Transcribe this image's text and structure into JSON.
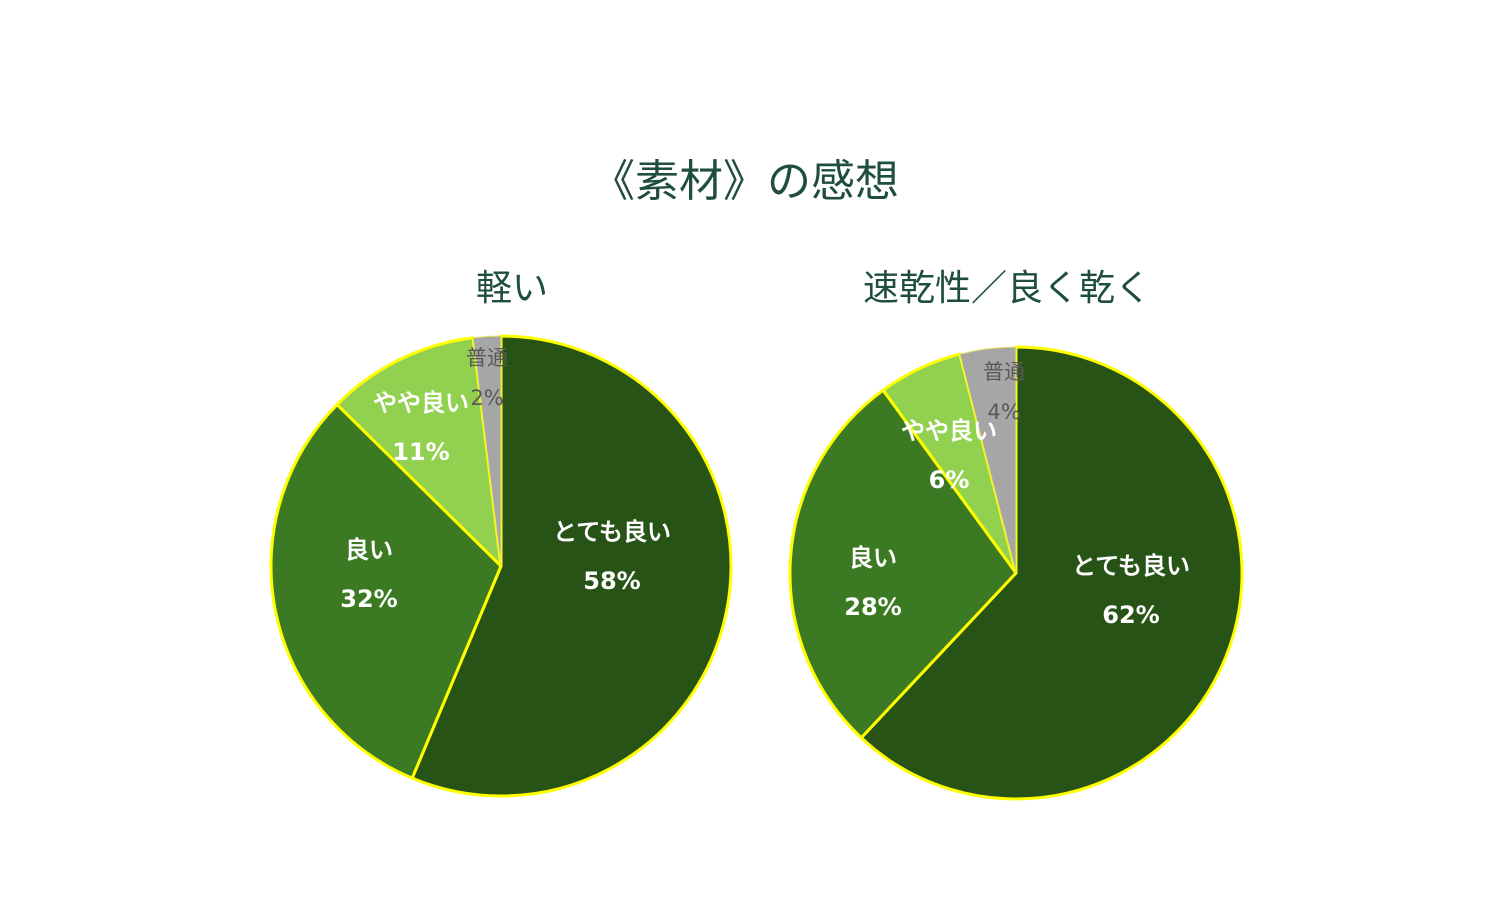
{
  "chart_data": [
    {
      "type": "pie",
      "title": "《素材》の感想",
      "subtitle": "軽い",
      "categories": [
        "とても良い",
        "良い",
        "やや良い",
        "普通"
      ],
      "values": [
        58,
        32,
        11,
        2
      ],
      "labels": [
        "58%",
        "32%",
        "11%",
        "2%"
      ],
      "colors": [
        "#285317",
        "#3b7a22",
        "#92d050",
        "#a6a6a6"
      ],
      "border_color": "#ffff00"
    },
    {
      "type": "pie",
      "subtitle": "速乾性／良く乾く",
      "categories": [
        "とても良い",
        "良い",
        "やや良い",
        "普通"
      ],
      "values": [
        62,
        28,
        6,
        4
      ],
      "labels": [
        "62%",
        "28%",
        "6%",
        "4%"
      ],
      "colors": [
        "#285317",
        "#3b7a22",
        "#92d050",
        "#a6a6a6"
      ],
      "border_color": "#ffff00"
    }
  ],
  "title": "《素材》の感想"
}
